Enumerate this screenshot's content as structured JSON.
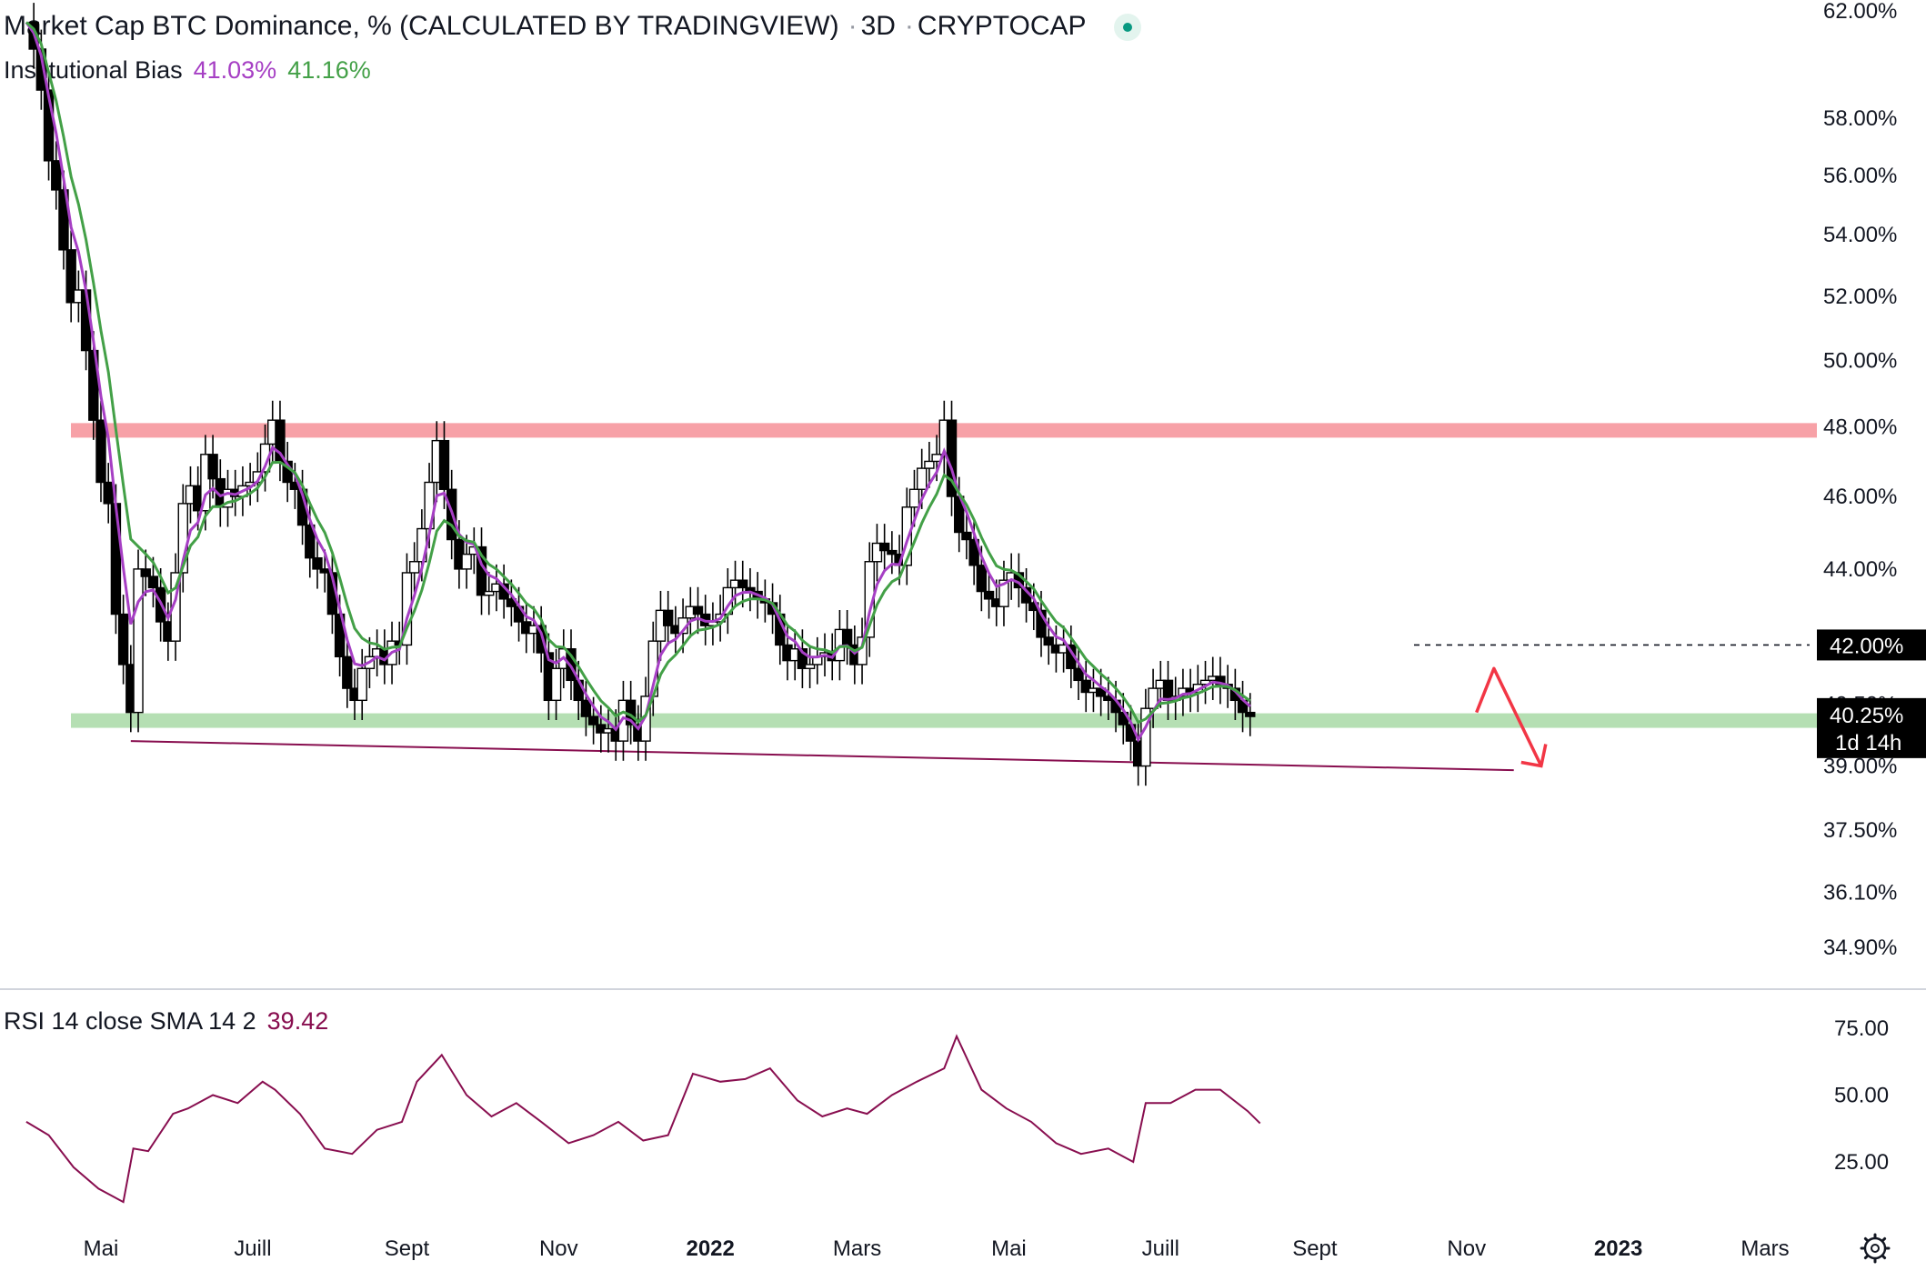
{
  "header": {
    "title": "Market Cap BTC Dominance, % (CALCULATED BY TRADINGVIEW)",
    "interval": "3D",
    "exchange": "CRYPTOCAP"
  },
  "indicator": {
    "name": "Institutional Bias",
    "value1": "41.03%",
    "value2": "41.16%",
    "color1": "#a63fc4",
    "color2": "#43a047"
  },
  "rsi_legend": {
    "name": "RSI 14 close SMA 14 2",
    "value": "39.42",
    "color": "#880e4f"
  },
  "price_marker": {
    "value": "40.25%",
    "countdown": "1d 14h"
  },
  "level_marker": {
    "value": "42.00%"
  },
  "chart_data": [
    {
      "type": "candlestick",
      "title": "Market Cap BTC Dominance, % (CALCULATED BY TRADINGVIEW)",
      "y_ticks": [
        "62.00%",
        "58.00%",
        "56.00%",
        "54.00%",
        "52.00%",
        "50.00%",
        "48.00%",
        "46.00%",
        "44.00%",
        "42.00%",
        "40.50%",
        "39.00%",
        "37.50%",
        "36.10%",
        "34.90%"
      ],
      "y_tick_values": [
        62,
        58,
        56,
        54,
        52,
        50,
        48,
        46,
        44,
        42,
        40.5,
        39,
        37.5,
        36.1,
        34.9
      ],
      "y_scale": "log",
      "ylim": [
        34.3,
        62.2
      ],
      "x_ticks": [
        "Mai",
        "Juill",
        "Sept",
        "Nov",
        "2022",
        "Mars",
        "Mai",
        "Juill",
        "Sept",
        "Nov",
        "2023",
        "Mars"
      ],
      "x_tick_years": [
        false,
        false,
        false,
        false,
        true,
        false,
        false,
        false,
        false,
        false,
        true,
        false
      ],
      "x_tick_dates": [
        "2021-05-01",
        "2021-07-01",
        "2021-09-01",
        "2021-11-01",
        "2022-01-01",
        "2022-03-01",
        "2022-05-01",
        "2022-07-01",
        "2022-09-01",
        "2022-11-01",
        "2023-01-01",
        "2023-03-01"
      ],
      "x_range": [
        "2021-04-01",
        "2023-04-01"
      ],
      "closes": [
        [
          "2021-04-01",
          61.5
        ],
        [
          "2021-04-04",
          60.5
        ],
        [
          "2021-04-07",
          59.0
        ],
        [
          "2021-04-10",
          56.5
        ],
        [
          "2021-04-13",
          55.5
        ],
        [
          "2021-04-16",
          53.5
        ],
        [
          "2021-04-19",
          51.8
        ],
        [
          "2021-04-22",
          52.2
        ],
        [
          "2021-04-25",
          50.3
        ],
        [
          "2021-04-28",
          48.2
        ],
        [
          "2021-05-01",
          46.4
        ],
        [
          "2021-05-04",
          45.8
        ],
        [
          "2021-05-07",
          42.8
        ],
        [
          "2021-05-10",
          41.5
        ],
        [
          "2021-05-13",
          40.3
        ],
        [
          "2021-05-16",
          44.0
        ],
        [
          "2021-05-19",
          43.8
        ],
        [
          "2021-05-22",
          43.5
        ],
        [
          "2021-05-25",
          42.6
        ],
        [
          "2021-05-28",
          42.1
        ],
        [
          "2021-05-31",
          43.9
        ],
        [
          "2021-06-03",
          45.8
        ],
        [
          "2021-06-06",
          46.3
        ],
        [
          "2021-06-09",
          45.6
        ],
        [
          "2021-06-12",
          47.2
        ],
        [
          "2021-06-15",
          46.5
        ],
        [
          "2021-06-18",
          45.7
        ],
        [
          "2021-06-21",
          46.2
        ],
        [
          "2021-06-24",
          46.0
        ],
        [
          "2021-06-27",
          46.3
        ],
        [
          "2021-06-30",
          46.4
        ],
        [
          "2021-07-03",
          46.7
        ],
        [
          "2021-07-06",
          47.5
        ],
        [
          "2021-07-09",
          48.2
        ],
        [
          "2021-07-12",
          47.0
        ],
        [
          "2021-07-15",
          46.4
        ],
        [
          "2021-07-18",
          46.2
        ],
        [
          "2021-07-21",
          45.2
        ],
        [
          "2021-07-24",
          44.3
        ],
        [
          "2021-07-27",
          44.0
        ],
        [
          "2021-07-30",
          43.9
        ],
        [
          "2021-08-02",
          42.8
        ],
        [
          "2021-08-05",
          41.7
        ],
        [
          "2021-08-08",
          40.9
        ],
        [
          "2021-08-11",
          40.6
        ],
        [
          "2021-08-14",
          41.4
        ],
        [
          "2021-08-17",
          41.7
        ],
        [
          "2021-08-20",
          41.9
        ],
        [
          "2021-08-23",
          41.5
        ],
        [
          "2021-08-26",
          42.1
        ],
        [
          "2021-08-29",
          42.0
        ],
        [
          "2021-09-01",
          43.9
        ],
        [
          "2021-09-04",
          44.2
        ],
        [
          "2021-09-07",
          45.1
        ],
        [
          "2021-09-10",
          46.4
        ],
        [
          "2021-09-13",
          47.6
        ],
        [
          "2021-09-16",
          46.2
        ],
        [
          "2021-09-19",
          44.8
        ],
        [
          "2021-09-22",
          44.0
        ],
        [
          "2021-09-25",
          44.4
        ],
        [
          "2021-09-28",
          44.6
        ],
        [
          "2021-10-01",
          43.3
        ],
        [
          "2021-10-04",
          43.4
        ],
        [
          "2021-10-07",
          43.6
        ],
        [
          "2021-10-10",
          43.2
        ],
        [
          "2021-10-13",
          43.0
        ],
        [
          "2021-10-16",
          42.6
        ],
        [
          "2021-10-19",
          42.3
        ],
        [
          "2021-10-22",
          42.5
        ],
        [
          "2021-10-25",
          41.8
        ],
        [
          "2021-10-28",
          40.6
        ],
        [
          "2021-10-31",
          41.4
        ],
        [
          "2021-11-03",
          41.9
        ],
        [
          "2021-11-06",
          41.1
        ],
        [
          "2021-11-09",
          40.6
        ],
        [
          "2021-11-12",
          40.2
        ],
        [
          "2021-11-15",
          40.0
        ],
        [
          "2021-11-18",
          39.8
        ],
        [
          "2021-11-21",
          39.9
        ],
        [
          "2021-11-24",
          39.6
        ],
        [
          "2021-11-27",
          40.6
        ],
        [
          "2021-11-30",
          40.0
        ],
        [
          "2021-12-03",
          39.6
        ],
        [
          "2021-12-06",
          40.7
        ],
        [
          "2021-12-09",
          42.1
        ],
        [
          "2021-12-12",
          42.9
        ],
        [
          "2021-12-15",
          42.5
        ],
        [
          "2021-12-18",
          42.3
        ],
        [
          "2021-12-21",
          42.7
        ],
        [
          "2021-12-24",
          43.0
        ],
        [
          "2021-12-27",
          42.8
        ],
        [
          "2021-12-30",
          42.5
        ],
        [
          "2022-01-02",
          42.6
        ],
        [
          "2022-01-05",
          42.8
        ],
        [
          "2022-01-08",
          43.5
        ],
        [
          "2022-01-11",
          43.7
        ],
        [
          "2022-01-14",
          43.5
        ],
        [
          "2022-01-17",
          43.4
        ],
        [
          "2022-01-20",
          43.2
        ],
        [
          "2022-01-23",
          43.1
        ],
        [
          "2022-01-26",
          42.8
        ],
        [
          "2022-01-29",
          42.0
        ],
        [
          "2022-02-01",
          41.6
        ],
        [
          "2022-02-04",
          41.9
        ],
        [
          "2022-02-07",
          41.4
        ],
        [
          "2022-02-10",
          41.5
        ],
        [
          "2022-02-13",
          41.7
        ],
        [
          "2022-02-16",
          41.8
        ],
        [
          "2022-02-19",
          41.6
        ],
        [
          "2022-02-22",
          42.4
        ],
        [
          "2022-02-25",
          42.0
        ],
        [
          "2022-02-28",
          41.5
        ],
        [
          "2022-03-03",
          42.2
        ],
        [
          "2022-03-06",
          44.2
        ],
        [
          "2022-03-09",
          44.7
        ],
        [
          "2022-03-12",
          44.5
        ],
        [
          "2022-03-15",
          44.4
        ],
        [
          "2022-03-18",
          44.1
        ],
        [
          "2022-03-21",
          45.7
        ],
        [
          "2022-03-24",
          46.2
        ],
        [
          "2022-03-27",
          46.8
        ],
        [
          "2022-03-30",
          47.0
        ],
        [
          "2022-04-02",
          47.2
        ],
        [
          "2022-04-05",
          48.2
        ],
        [
          "2022-04-08",
          46.0
        ],
        [
          "2022-04-11",
          45.0
        ],
        [
          "2022-04-14",
          44.8
        ],
        [
          "2022-04-17",
          44.1
        ],
        [
          "2022-04-20",
          43.4
        ],
        [
          "2022-04-23",
          43.2
        ],
        [
          "2022-04-26",
          43.0
        ],
        [
          "2022-04-29",
          43.7
        ],
        [
          "2022-05-02",
          43.9
        ],
        [
          "2022-05-05",
          43.5
        ],
        [
          "2022-05-08",
          43.1
        ],
        [
          "2022-05-11",
          42.9
        ],
        [
          "2022-05-14",
          42.2
        ],
        [
          "2022-05-17",
          42.0
        ],
        [
          "2022-05-20",
          41.8
        ],
        [
          "2022-05-23",
          42.0
        ],
        [
          "2022-05-26",
          41.4
        ],
        [
          "2022-05-29",
          41.1
        ],
        [
          "2022-06-01",
          40.8
        ],
        [
          "2022-06-04",
          40.9
        ],
        [
          "2022-06-07",
          40.7
        ],
        [
          "2022-06-10",
          40.6
        ],
        [
          "2022-06-13",
          40.3
        ],
        [
          "2022-06-16",
          40.0
        ],
        [
          "2022-06-19",
          39.6
        ],
        [
          "2022-06-22",
          39.0
        ],
        [
          "2022-06-25",
          40.4
        ],
        [
          "2022-06-28",
          40.9
        ],
        [
          "2022-07-01",
          41.1
        ],
        [
          "2022-07-04",
          40.6
        ],
        [
          "2022-07-07",
          40.7
        ],
        [
          "2022-07-10",
          40.9
        ],
        [
          "2022-07-13",
          40.8
        ],
        [
          "2022-07-16",
          41.0
        ],
        [
          "2022-07-19",
          41.1
        ],
        [
          "2022-07-22",
          41.2
        ],
        [
          "2022-07-25",
          41.0
        ],
        [
          "2022-07-28",
          40.9
        ],
        [
          "2022-07-31",
          40.6
        ],
        [
          "2022-08-03",
          40.3
        ],
        [
          "2022-08-06",
          40.2
        ]
      ],
      "moving_averages": [
        {
          "name": "41.03%",
          "color": "#a63fc4"
        },
        {
          "name": "41.16%",
          "color": "#43a047"
        }
      ],
      "horizontal_zones": [
        {
          "value": 47.9,
          "color": "#f7a1a7",
          "label": "resistance"
        },
        {
          "value": 40.1,
          "color": "#b5dfb3",
          "label": "support"
        }
      ],
      "dashed_level": 42.0,
      "trendline": {
        "from": [
          "2021-05-13",
          39.6
        ],
        "to": [
          "2022-11-20",
          38.9
        ],
        "color": "#880e4f"
      },
      "projection_arrow": {
        "points": [
          [
            "2022-11-05",
            40.3
          ],
          [
            "2022-11-12",
            41.4
          ],
          [
            "2022-12-01",
            39.0
          ]
        ],
        "color": "#f23645"
      },
      "last_price": 40.25,
      "last_price_label": "40.25%",
      "countdown": "1d 14h"
    },
    {
      "type": "line",
      "title": "RSI 14 close SMA 14 2",
      "value_label": "39.42",
      "y_ticks": [
        "75.00",
        "50.00",
        "25.00"
      ],
      "y_tick_values": [
        75,
        50,
        25
      ],
      "ylim": [
        5,
        85
      ],
      "color": "#880e4f",
      "x": [
        "2021-04-01",
        "2021-04-10",
        "2021-04-20",
        "2021-04-30",
        "2021-05-10",
        "2021-05-14",
        "2021-05-20",
        "2021-05-30",
        "2021-06-05",
        "2021-06-15",
        "2021-06-25",
        "2021-07-05",
        "2021-07-10",
        "2021-07-20",
        "2021-07-30",
        "2021-08-10",
        "2021-08-20",
        "2021-08-30",
        "2021-09-05",
        "2021-09-15",
        "2021-09-25",
        "2021-10-05",
        "2021-10-15",
        "2021-10-25",
        "2021-11-05",
        "2021-11-15",
        "2021-11-25",
        "2021-12-05",
        "2021-12-15",
        "2021-12-25",
        "2022-01-05",
        "2022-01-15",
        "2022-01-25",
        "2022-02-05",
        "2022-02-15",
        "2022-02-25",
        "2022-03-05",
        "2022-03-15",
        "2022-03-25",
        "2022-04-05",
        "2022-04-10",
        "2022-04-20",
        "2022-04-30",
        "2022-05-10",
        "2022-05-20",
        "2022-05-30",
        "2022-06-10",
        "2022-06-20",
        "2022-06-25",
        "2022-07-05",
        "2022-07-15",
        "2022-07-25",
        "2022-08-05",
        "2022-08-10"
      ],
      "values": [
        40,
        35,
        23,
        15,
        10,
        30,
        29,
        43,
        45,
        50,
        47,
        55,
        52,
        43,
        30,
        28,
        37,
        40,
        55,
        65,
        50,
        42,
        47,
        40,
        32,
        35,
        40,
        33,
        35,
        58,
        55,
        56,
        60,
        48,
        42,
        45,
        43,
        50,
        55,
        60,
        72,
        52,
        45,
        40,
        32,
        28,
        30,
        25,
        47,
        47,
        52,
        52,
        44,
        39.42
      ]
    }
  ]
}
